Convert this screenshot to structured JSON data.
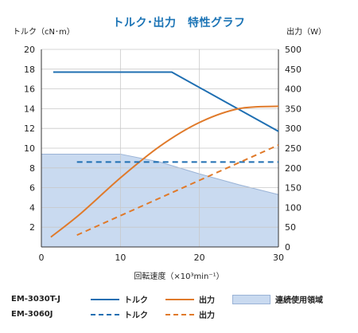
{
  "title": "トルク･出力　特性グラフ",
  "chart_data": {
    "type": "line",
    "title": "トルク･出力　特性グラフ",
    "xlabel": "回転速度（×10³min⁻¹）",
    "ylabel_left": "トルク（cN･m）",
    "ylabel_right": "出力（W）",
    "xlim": [
      0,
      30
    ],
    "xticks": [
      "0",
      "10",
      "20",
      "30"
    ],
    "ylim_left": [
      0,
      20
    ],
    "yticks_left": [
      "2",
      "4",
      "6",
      "8",
      "10",
      "12",
      "14",
      "16",
      "18",
      "20"
    ],
    "ylim_right": [
      0,
      500
    ],
    "yticks_right": [
      "0",
      "50",
      "100",
      "150",
      "200",
      "250",
      "300",
      "350",
      "400",
      "450",
      "500"
    ],
    "grid": true,
    "colors": {
      "torque": "#1f6fb2",
      "power": "#e07a2a",
      "area": "#c9daf0",
      "area_edge": "#9ab3d6",
      "grid": "#c8c8c8"
    },
    "series": [
      {
        "name": "EM-3030T-J トルク",
        "axis": "left",
        "style": "solid",
        "color": "#1f6fb2",
        "x": [
          1.5,
          16.5,
          30
        ],
        "y": [
          17.7,
          17.7,
          11.7
        ]
      },
      {
        "name": "EM-3030T-J 出力",
        "axis": "right",
        "style": "solid",
        "color": "#e07a2a",
        "x": [
          1.2,
          5,
          10,
          15,
          20,
          25,
          30
        ],
        "y": [
          25,
          85,
          175,
          255,
          315,
          350,
          356
        ]
      },
      {
        "name": "EM-3060J トルク",
        "axis": "left",
        "style": "dashed",
        "color": "#1f6fb2",
        "x": [
          4.5,
          30
        ],
        "y": [
          8.6,
          8.6
        ]
      },
      {
        "name": "EM-3060J 出力",
        "axis": "right",
        "style": "dashed",
        "color": "#e07a2a",
        "x": [
          4.5,
          30
        ],
        "y": [
          30,
          258
        ]
      }
    ],
    "area": {
      "name": "連続使用領域",
      "axis": "left",
      "x": [
        0,
        10,
        15,
        20,
        25,
        30
      ],
      "y": [
        9.4,
        9.4,
        8.6,
        7.4,
        6.3,
        5.3
      ]
    }
  },
  "legend": {
    "row1": {
      "model": "EM-3030T-J",
      "torque": "トルク",
      "power": "出力",
      "area": "連続使用領域"
    },
    "row2": {
      "model": "EM-3060J",
      "torque": "トルク",
      "power": "出力"
    }
  }
}
